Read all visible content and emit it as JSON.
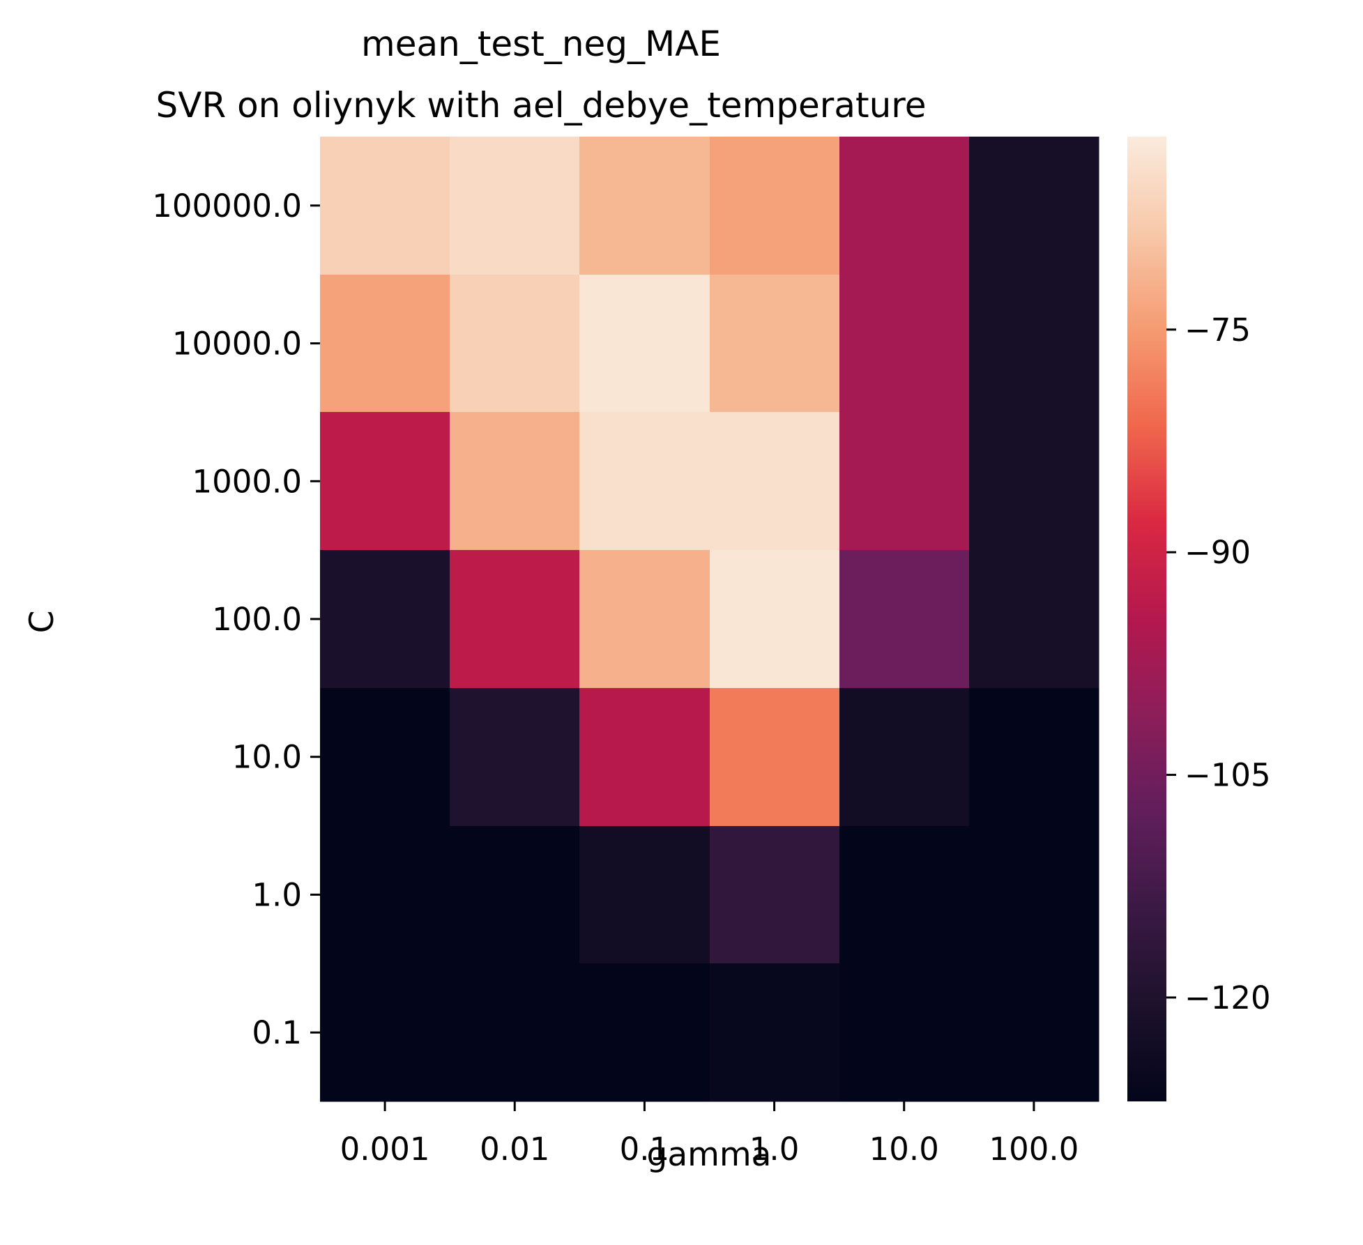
{
  "chart_data": {
    "type": "heatmap",
    "title": "mean_test_neg_MAE",
    "subtitle": "SVR on oliynyk with ael_debye_temperature",
    "xlabel": "gamma",
    "ylabel": "C",
    "x_categories": [
      "0.001",
      "0.01",
      "0.1",
      "1.0",
      "10.0",
      "100.0"
    ],
    "y_categories": [
      "100000.0",
      "10000.0",
      "1000.0",
      "100.0",
      "10.0",
      "1.0",
      "0.1"
    ],
    "values": [
      [
        -67,
        -65,
        -71,
        -74,
        -97,
        -122
      ],
      [
        -74,
        -67,
        -63,
        -71,
        -97,
        -122
      ],
      [
        -93,
        -72,
        -64,
        -64,
        -97,
        -122
      ],
      [
        -121,
        -93,
        -72,
        -63,
        -106,
        -122
      ],
      [
        -127,
        -120,
        -94,
        -79,
        -123,
        -127
      ],
      [
        -127,
        -127,
        -123,
        -116,
        -127,
        -127
      ],
      [
        -127,
        -127,
        -127,
        -126,
        -127,
        -127
      ]
    ],
    "colorbar": {
      "colormap": "rocket",
      "vmin": -127,
      "vmax": -62,
      "ticks": [
        -75,
        -90,
        -105,
        -120
      ],
      "tick_labels": [
        "−75",
        "−90",
        "−105",
        "−120"
      ]
    },
    "legend": "colorbar-right",
    "grid": false
  }
}
